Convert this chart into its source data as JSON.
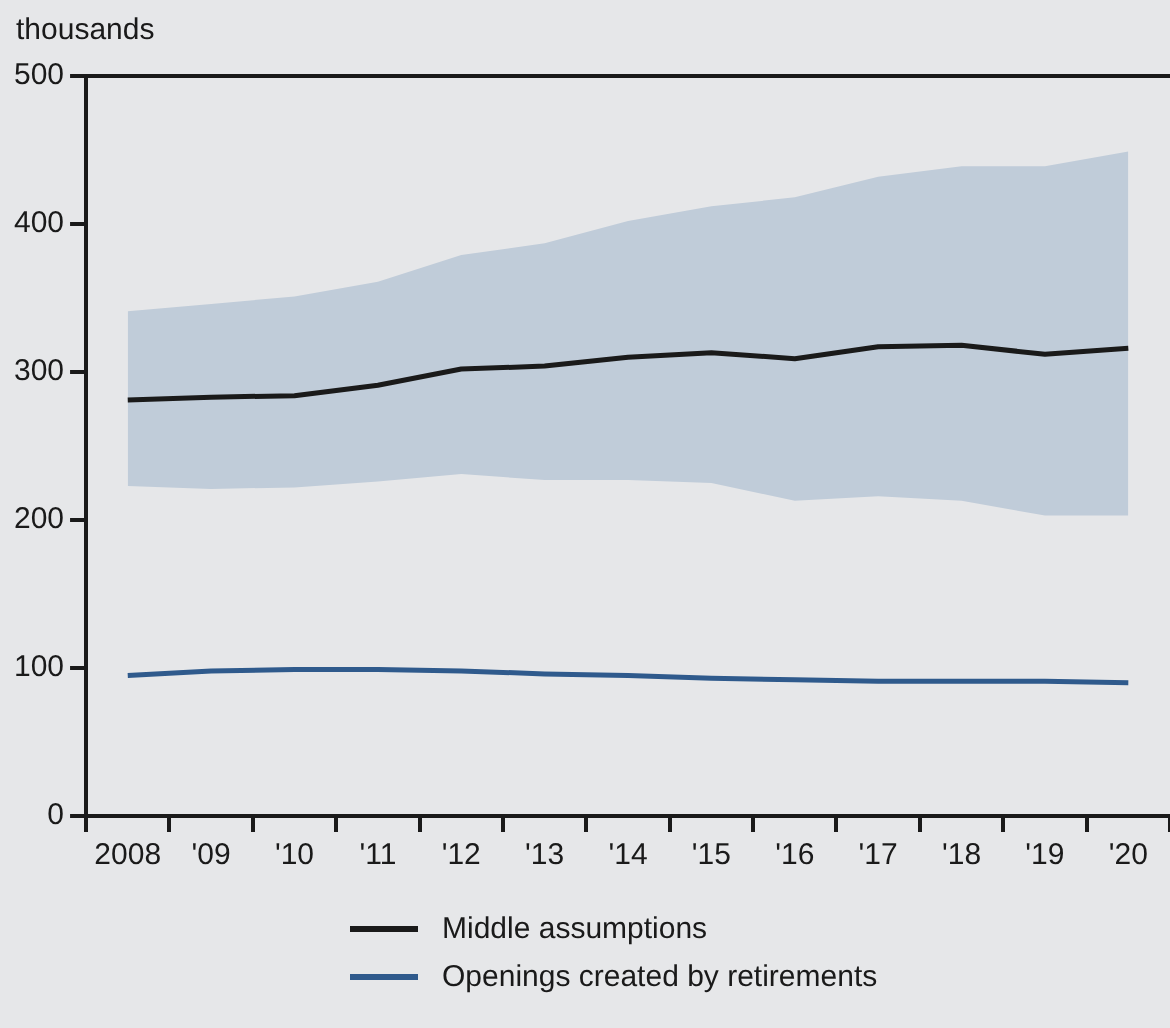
{
  "chart_data": {
    "type": "line",
    "ylabel": "thousands",
    "categories": [
      "2008",
      "'09",
      "'10",
      "'11",
      "'12",
      "'13",
      "'14",
      "'15",
      "'16",
      "'17",
      "'18",
      "'19",
      "'20"
    ],
    "ylim": [
      0,
      500
    ],
    "yticks": [
      0,
      100,
      200,
      300,
      400,
      500
    ],
    "grid": false,
    "legend": "bottom",
    "marker": "none",
    "line_style": "solid",
    "series": [
      {
        "name": "Middle assumptions",
        "color": "#1a1a1a",
        "values": [
          281,
          283,
          284,
          291,
          302,
          304,
          310,
          313,
          309,
          317,
          318,
          312,
          316
        ],
        "lower": [
          223,
          221,
          222,
          226,
          231,
          227,
          227,
          225,
          213,
          216,
          213,
          203,
          203
        ],
        "upper": [
          341,
          346,
          351,
          361,
          379,
          387,
          402,
          412,
          418,
          432,
          439,
          439,
          449
        ]
      },
      {
        "name": "Openings created by retirements",
        "color": "#2f5a8c",
        "values": [
          95,
          98,
          99,
          99,
          98,
          96,
          95,
          93,
          92,
          91,
          91,
          91,
          90
        ]
      }
    ]
  }
}
